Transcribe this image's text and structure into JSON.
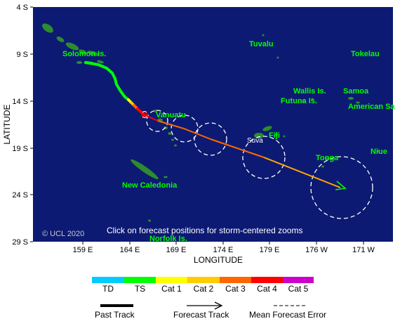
{
  "map": {
    "credit": "© UCL 2020",
    "instruction": "Click on forecast positions for storm-centered zooms",
    "axis": {
      "y_label": "LATITUDE",
      "x_label": "LONGITUDE",
      "lat_ticks": [
        "4 S",
        "9 S",
        "14 S",
        "19 S",
        "24 S",
        "29 S"
      ],
      "lon_ticks": [
        "159 E",
        "164 E",
        "169 E",
        "174 E",
        "179 E",
        "176 W",
        "171 W"
      ]
    },
    "places": {
      "solomon": "Solomon Is.",
      "tuvalu": "Tuvalu",
      "tokelau": "Tokelau",
      "wallis": "Wallis Is.",
      "futuna": "Futuna Is.",
      "samoa": "Samoa",
      "american_samoa": "American Sa",
      "vanuatu": "Vanuatu",
      "fiji": "Fiji",
      "suva": "Suva",
      "tonga": "Tonga",
      "niue": "Niue",
      "new_caledonia": "New Caledonia",
      "norfolk": "Norfolk Is."
    }
  },
  "legend": {
    "categories": [
      {
        "label": "TD",
        "color": "#00ccff"
      },
      {
        "label": "TS",
        "color": "#00ff00"
      },
      {
        "label": "Cat 1",
        "color": "#ffff00"
      },
      {
        "label": "Cat 2",
        "color": "#ffcc00"
      },
      {
        "label": "Cat 3",
        "color": "#ff6600"
      },
      {
        "label": "Cat 4",
        "color": "#ff0000"
      },
      {
        "label": "Cat 5",
        "color": "#cc00cc"
      }
    ],
    "past_track": "Past Track",
    "forecast_track": "Forecast Track",
    "mean_error": "Mean Forecast Error"
  },
  "colors": {
    "ocean": "#0d1a73",
    "land": "#2e8b2e",
    "label_green": "#00ff00",
    "forecast_line": "#ffa500"
  }
}
